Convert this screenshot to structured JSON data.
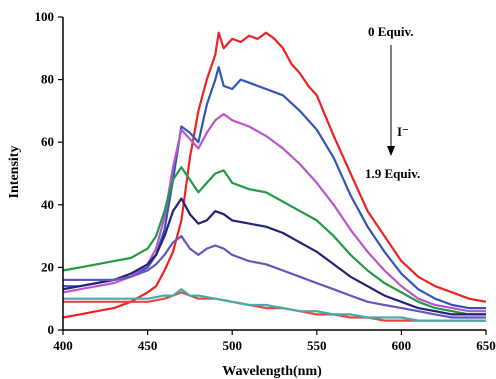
{
  "chart_data": {
    "type": "line",
    "xlabel": "Wavelength(nm)",
    "ylabel": "Intensity",
    "xlim": [
      400,
      650
    ],
    "ylim": [
      0,
      100
    ],
    "xticks": [
      "400",
      "450",
      "500",
      "550",
      "600",
      "650"
    ],
    "yticks": [
      "0",
      "20",
      "40",
      "60",
      "80",
      "100"
    ],
    "annotations": {
      "start": "0 Equiv.",
      "ion": "I⁻",
      "end": "1.9 Equiv."
    },
    "series": [
      {
        "color": "#ee2222",
        "x": [
          400,
          410,
          420,
          430,
          440,
          450,
          455,
          460,
          465,
          470,
          475,
          480,
          485,
          490,
          492,
          495,
          500,
          505,
          510,
          515,
          520,
          525,
          530,
          535,
          540,
          545,
          550,
          560,
          570,
          580,
          590,
          600,
          610,
          620,
          630,
          640,
          650
        ],
        "y": [
          4,
          5,
          6,
          7,
          9,
          12,
          14,
          19,
          25,
          35,
          55,
          70,
          80,
          88,
          95,
          90,
          93,
          92,
          94,
          93,
          95,
          93,
          90,
          85,
          82,
          78,
          75,
          62,
          50,
          38,
          30,
          22,
          17,
          14,
          12,
          10,
          9
        ]
      },
      {
        "color": "#3355bb",
        "x": [
          400,
          410,
          420,
          430,
          440,
          450,
          455,
          460,
          465,
          470,
          475,
          480,
          485,
          490,
          492,
          495,
          500,
          505,
          510,
          520,
          530,
          540,
          550,
          560,
          570,
          580,
          590,
          600,
          610,
          620,
          630,
          640,
          650
        ],
        "y": [
          14,
          14,
          15,
          16,
          17,
          20,
          24,
          32,
          48,
          65,
          63,
          60,
          72,
          80,
          84,
          78,
          77,
          80,
          79,
          77,
          75,
          70,
          64,
          55,
          43,
          33,
          25,
          18,
          13,
          10,
          8,
          7,
          7
        ]
      },
      {
        "color": "#bb55cc",
        "x": [
          400,
          410,
          420,
          430,
          440,
          450,
          455,
          460,
          465,
          470,
          475,
          480,
          485,
          490,
          495,
          500,
          510,
          520,
          530,
          540,
          550,
          560,
          570,
          580,
          590,
          600,
          610,
          620,
          630,
          640,
          650
        ],
        "y": [
          12,
          13,
          14,
          15,
          17,
          21,
          26,
          36,
          52,
          64,
          61,
          58,
          63,
          67,
          69,
          67,
          65,
          62,
          58,
          53,
          47,
          40,
          32,
          25,
          19,
          14,
          10,
          8,
          7,
          6,
          6
        ]
      },
      {
        "color": "#229944",
        "x": [
          400,
          410,
          420,
          430,
          440,
          450,
          455,
          460,
          465,
          470,
          475,
          480,
          485,
          490,
          495,
          500,
          510,
          520,
          530,
          540,
          550,
          560,
          570,
          580,
          590,
          600,
          610,
          620,
          630,
          640,
          650
        ],
        "y": [
          19,
          20,
          21,
          22,
          23,
          26,
          30,
          38,
          48,
          52,
          48,
          44,
          47,
          50,
          51,
          47,
          45,
          44,
          41,
          38,
          35,
          30,
          24,
          19,
          15,
          12,
          9,
          7,
          6,
          5,
          5
        ]
      },
      {
        "color": "#222277",
        "x": [
          400,
          410,
          420,
          430,
          440,
          450,
          455,
          460,
          465,
          470,
          475,
          480,
          485,
          490,
          495,
          500,
          510,
          520,
          530,
          540,
          550,
          560,
          570,
          580,
          590,
          600,
          610,
          620,
          630,
          640,
          650
        ],
        "y": [
          13,
          14,
          15,
          16,
          18,
          21,
          24,
          30,
          38,
          42,
          37,
          34,
          35,
          38,
          37,
          35,
          34,
          33,
          31,
          28,
          25,
          21,
          17,
          14,
          11,
          9,
          7,
          6,
          5,
          5,
          5
        ]
      },
      {
        "color": "#6655bb",
        "x": [
          400,
          410,
          420,
          430,
          440,
          450,
          455,
          460,
          465,
          470,
          475,
          480,
          485,
          490,
          495,
          500,
          510,
          520,
          530,
          540,
          550,
          560,
          570,
          580,
          590,
          600,
          610,
          620,
          630,
          640,
          650
        ],
        "y": [
          16,
          16,
          16,
          16,
          17,
          19,
          21,
          24,
          28,
          30,
          26,
          24,
          26,
          27,
          26,
          24,
          22,
          21,
          19,
          17,
          15,
          13,
          11,
          9,
          8,
          7,
          6,
          5,
          4,
          4,
          4
        ]
      },
      {
        "color": "#ee4444",
        "x": [
          400,
          410,
          420,
          430,
          440,
          450,
          460,
          465,
          470,
          475,
          480,
          490,
          500,
          510,
          520,
          530,
          540,
          550,
          560,
          570,
          580,
          590,
          600,
          610,
          620,
          630,
          640,
          650
        ],
        "y": [
          9,
          9,
          9,
          9,
          9,
          9,
          10,
          11,
          12,
          11,
          10,
          10,
          9,
          8,
          7,
          7,
          6,
          5,
          5,
          4,
          4,
          3,
          3,
          3,
          3,
          3,
          3,
          3
        ]
      },
      {
        "color": "#44aaaa",
        "x": [
          400,
          410,
          420,
          430,
          440,
          450,
          460,
          465,
          470,
          475,
          480,
          490,
          500,
          510,
          520,
          530,
          540,
          550,
          560,
          570,
          580,
          590,
          600,
          610,
          620,
          630,
          640,
          650
        ],
        "y": [
          10,
          10,
          10,
          10,
          10,
          10,
          11,
          11,
          13,
          11,
          11,
          10,
          9,
          8,
          8,
          7,
          6,
          6,
          5,
          5,
          4,
          4,
          4,
          3,
          3,
          3,
          3,
          3
        ]
      }
    ]
  }
}
